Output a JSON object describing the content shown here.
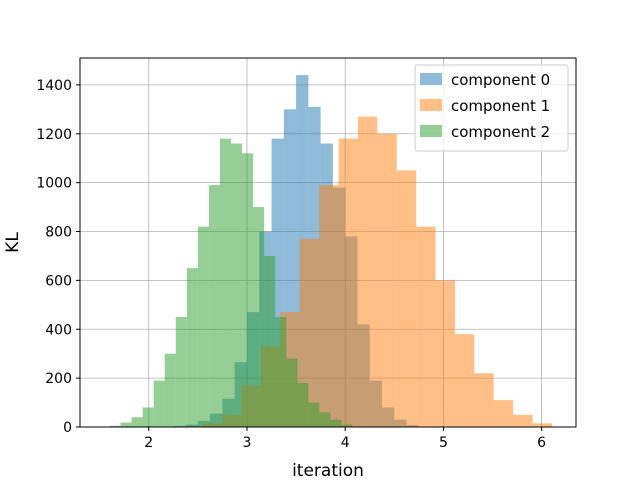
{
  "chart_data": {
    "type": "bar",
    "title": "",
    "xlabel": "iteration",
    "ylabel": "KL",
    "xlim": [
      1.3,
      6.35
    ],
    "ylim": [
      0,
      1510
    ],
    "xticks": [
      "2",
      "3",
      "4",
      "5",
      "6"
    ],
    "yticks": [
      "0",
      "200",
      "400",
      "600",
      "800",
      "1000",
      "1200",
      "1400"
    ],
    "grid": true,
    "legend_position": "top-right",
    "series": [
      {
        "name": "component 0",
        "color": "#1f77b4",
        "opacity": 0.5,
        "bins": [
          2.25,
          2.375,
          2.5,
          2.625,
          2.75,
          2.875,
          3.0,
          3.125,
          3.25,
          3.375,
          3.5,
          3.625,
          3.75,
          3.875,
          4.0,
          4.125,
          4.25,
          4.375,
          4.5,
          4.625,
          4.75
        ],
        "counts": [
          4,
          10,
          25,
          55,
          115,
          265,
          470,
          800,
          1180,
          1300,
          1440,
          1310,
          1160,
          980,
          780,
          420,
          190,
          80,
          30,
          8
        ]
      },
      {
        "name": "component 1",
        "color": "#ff7f0e",
        "opacity": 0.5,
        "bins": [
          2.55,
          2.7475,
          2.945,
          3.1425,
          3.34,
          3.5375,
          3.735,
          3.9325,
          4.13,
          4.3275,
          4.525,
          4.7225,
          4.92,
          5.1175,
          5.315,
          5.5125,
          5.71,
          5.9075,
          6.105
        ],
        "counts": [
          15,
          50,
          170,
          330,
          470,
          770,
          990,
          1180,
          1270,
          1200,
          1050,
          820,
          600,
          380,
          220,
          110,
          50,
          15
        ]
      },
      {
        "name": "component 2",
        "color": "#2ca02c",
        "opacity": 0.5,
        "bins": [
          1.6,
          1.7125,
          1.825,
          1.9375,
          2.05,
          2.1625,
          2.275,
          2.3875,
          2.5,
          2.6125,
          2.725,
          2.8375,
          2.95,
          3.0625,
          3.175,
          3.2875,
          3.4,
          3.5125,
          3.625,
          3.7375,
          3.85,
          3.9625,
          4.075
        ],
        "counts": [
          5,
          18,
          40,
          80,
          190,
          300,
          450,
          650,
          820,
          990,
          1180,
          1160,
          1120,
          900,
          700,
          450,
          280,
          180,
          100,
          60,
          30,
          10
        ]
      }
    ]
  }
}
